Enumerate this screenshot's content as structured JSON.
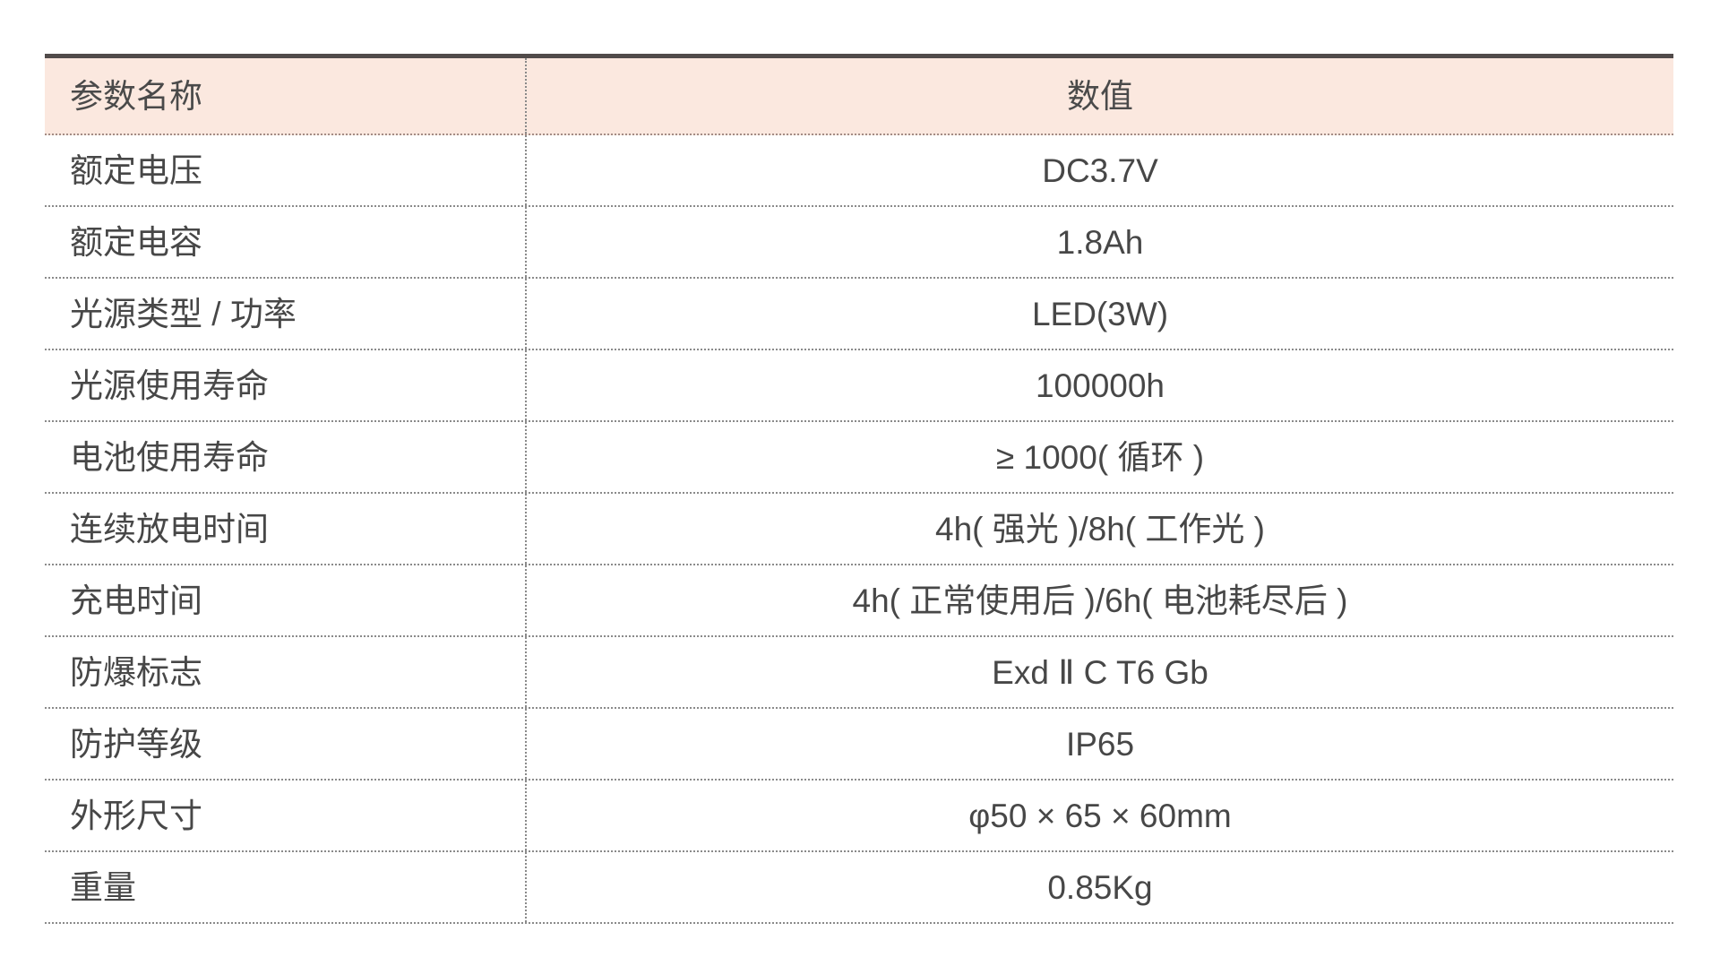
{
  "table": {
    "columns": {
      "param": "参数名称",
      "value": "数值"
    },
    "rows": [
      {
        "name": "额定电压",
        "value": "DC3.7V"
      },
      {
        "name": "额定电容",
        "value": "1.8Ah"
      },
      {
        "name": "光源类型 / 功率",
        "value": "LED(3W)"
      },
      {
        "name": "光源使用寿命",
        "value": "100000h"
      },
      {
        "name": "电池使用寿命",
        "value": "≥ 1000( 循环 )"
      },
      {
        "name": "连续放电时间",
        "value": "4h( 强光 )/8h( 工作光 )"
      },
      {
        "name": "充电时间",
        "value": "4h( 正常使用后 )/6h( 电池耗尽后 )"
      },
      {
        "name": "防爆标志",
        "value": "Exd Ⅱ C T6 Gb"
      },
      {
        "name": "防护等级",
        "value": "IP65"
      },
      {
        "name": "外形尺寸",
        "value": "φ50 × 65 × 60mm"
      },
      {
        "name": "重量",
        "value": "0.85Kg"
      }
    ],
    "colors": {
      "header_bg": "#fbe8df",
      "top_border": "#514b4a",
      "dotted_line": "#8a8a8a",
      "text": "#474747"
    }
  }
}
